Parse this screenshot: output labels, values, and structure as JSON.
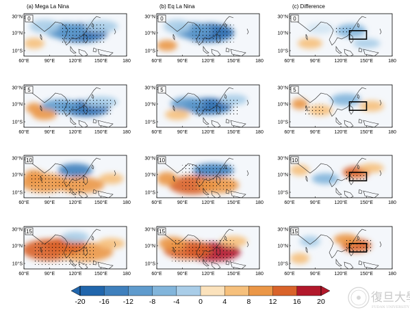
{
  "panels": {
    "titles": [
      "(a) Mega La Nina",
      "(b) Eq La Nina",
      "(c) Difference"
    ],
    "lags": [
      "0",
      "5",
      "10",
      "15"
    ],
    "xticks": [
      "60°E",
      "90°E",
      "120°E",
      "150°E",
      "180"
    ],
    "yticks": [
      "30°N",
      "10°N",
      "10°S"
    ],
    "map_extent": {
      "lon": [
        60,
        180
      ],
      "lat": [
        -15,
        35
      ]
    },
    "box_region": {
      "lon": [
        130,
        150
      ],
      "lat": [
        5,
        15
      ],
      "panels": "c"
    }
  },
  "colorbar": {
    "labels": [
      "-20",
      "-16",
      "-12",
      "-8",
      "-4",
      "0",
      "4",
      "8",
      "12",
      "16",
      "20"
    ],
    "colors": [
      "#2166ac",
      "#3f80bd",
      "#5f9bcd",
      "#82b5db",
      "#a9cde8",
      "#d3e5f3",
      "#fbe2bc",
      "#f6c07c",
      "#eb9747",
      "#d9632a",
      "#b2182b"
    ],
    "extend": "both"
  },
  "watermark": {
    "text": "復旦大學",
    "subtext": "FUDAN UNIVERSITY"
  }
}
